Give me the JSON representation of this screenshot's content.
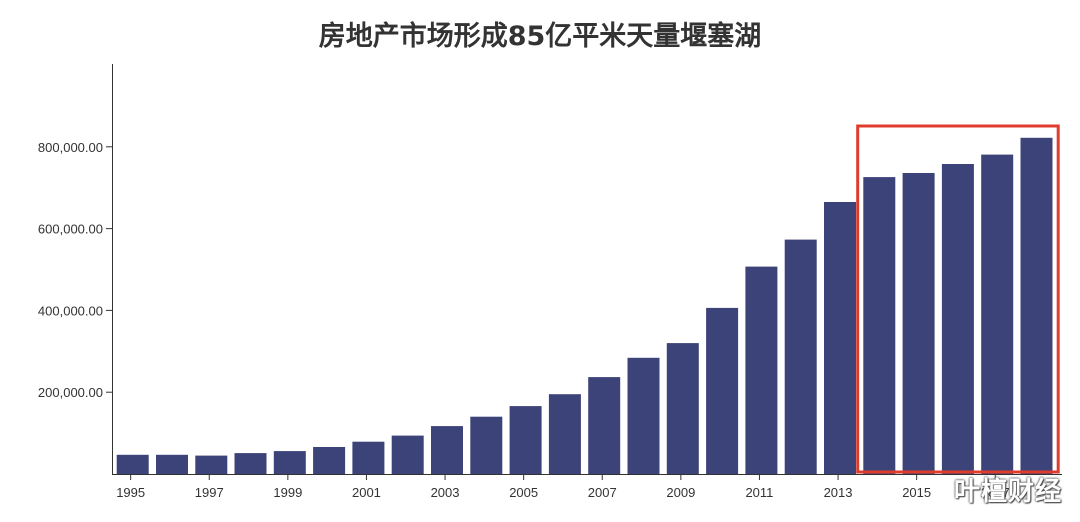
{
  "chart_data": {
    "type": "bar",
    "title": "房地产市场形成85亿平米天量堰塞湖",
    "categories": [
      "1995",
      "1996",
      "1997",
      "1998",
      "1999",
      "2000",
      "2001",
      "2002",
      "2003",
      "2004",
      "2005",
      "2006",
      "2007",
      "2008",
      "2009",
      "2010",
      "2011",
      "2012",
      "2013",
      "2014",
      "2015",
      "2016",
      "2017",
      "2018"
    ],
    "values": [
      47000,
      47000,
      45000,
      51000,
      56000,
      66000,
      79000,
      94000,
      117000,
      140000,
      166000,
      195000,
      237000,
      284000,
      320000,
      406000,
      507000,
      573000,
      665000,
      726000,
      736000,
      758000,
      781000,
      822000
    ],
    "x_tick_labels": [
      "1995",
      "1997",
      "1999",
      "2001",
      "2003",
      "2005",
      "2007",
      "2009",
      "2011",
      "2013",
      "2015",
      "2017"
    ],
    "y_tick_labels": [
      "200,000.00",
      "400,000.00",
      "600,000.00",
      "800,000.00"
    ],
    "y_ticks": [
      200000,
      400000,
      600000,
      800000
    ],
    "ylim": [
      0,
      1000000
    ],
    "xlabel": "",
    "ylabel": "",
    "grid": false,
    "bar_color": "#3b4378",
    "highlight": {
      "categories": [
        "2014",
        "2018"
      ],
      "color": "#e03c2e"
    }
  },
  "watermark": {
    "text": "叶檀财经"
  }
}
